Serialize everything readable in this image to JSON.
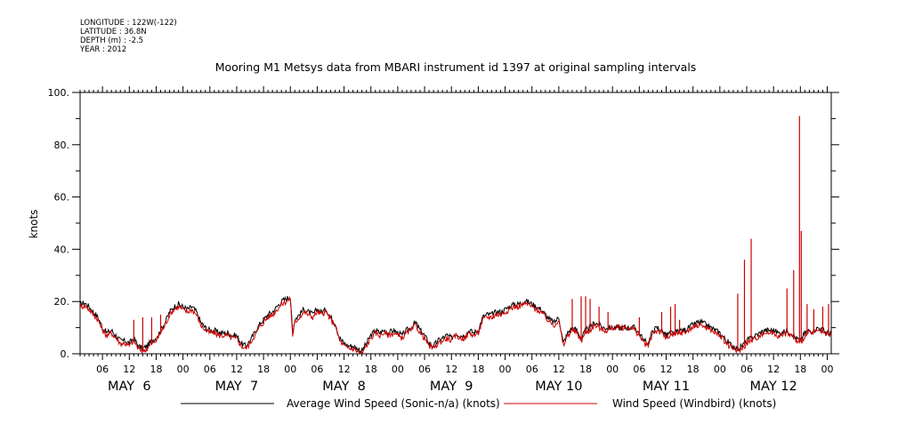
{
  "header": {
    "longitude": "LONGITUDE : 122W(-122)",
    "latitude": "LATITUDE : 36.8N",
    "depth": "DEPTH (m) : -2.5",
    "year": "YEAR : 2012"
  },
  "chart_data": {
    "type": "line",
    "title": "Mooring M1 Metsys data from MBARI instrument id 1397 at original sampling intervals",
    "ylabel": "knots",
    "xlabel": "",
    "ylim": [
      0,
      100
    ],
    "yticks": [
      {
        "v": 0,
        "label": "0."
      },
      {
        "v": 20,
        "label": "20."
      },
      {
        "v": 40,
        "label": "40."
      },
      {
        "v": 60,
        "label": "60."
      },
      {
        "v": 80,
        "label": "80."
      },
      {
        "v": 100,
        "label": "100."
      }
    ],
    "xlim_hours": [
      1.0,
      168.9
    ],
    "hour_ticks": [
      {
        "h": 6,
        "label": "06"
      },
      {
        "h": 12,
        "label": "12"
      },
      {
        "h": 18,
        "label": "18"
      },
      {
        "h": 24,
        "label": "00"
      },
      {
        "h": 30,
        "label": "06"
      },
      {
        "h": 36,
        "label": "12"
      },
      {
        "h": 42,
        "label": "18"
      },
      {
        "h": 48,
        "label": "00"
      },
      {
        "h": 54,
        "label": "06"
      },
      {
        "h": 60,
        "label": "12"
      },
      {
        "h": 66,
        "label": "18"
      },
      {
        "h": 72,
        "label": "00"
      },
      {
        "h": 78,
        "label": "06"
      },
      {
        "h": 84,
        "label": "12"
      },
      {
        "h": 90,
        "label": "18"
      },
      {
        "h": 96,
        "label": "00"
      },
      {
        "h": 102,
        "label": "06"
      },
      {
        "h": 108,
        "label": "12"
      },
      {
        "h": 114,
        "label": "18"
      },
      {
        "h": 120,
        "label": "00"
      },
      {
        "h": 126,
        "label": "06"
      },
      {
        "h": 132,
        "label": "12"
      },
      {
        "h": 138,
        "label": "18"
      },
      {
        "h": 144,
        "label": "00"
      },
      {
        "h": 150,
        "label": "06"
      },
      {
        "h": 156,
        "label": "12"
      },
      {
        "h": 162,
        "label": "18"
      },
      {
        "h": 168,
        "label": "00"
      }
    ],
    "day_labels": [
      {
        "h": 12,
        "label": "MAY  6"
      },
      {
        "h": 36,
        "label": "MAY  7"
      },
      {
        "h": 60,
        "label": "MAY  8"
      },
      {
        "h": 84,
        "label": "MAY  9"
      },
      {
        "h": 108,
        "label": "MAY 10"
      },
      {
        "h": 132,
        "label": "MAY 11"
      },
      {
        "h": 156,
        "label": "MAY 12"
      }
    ],
    "series": [
      {
        "name": "Average Wind Speed (Sonic-n/a) (knots)",
        "color": "#000000",
        "x": [
          1,
          2,
          3,
          4,
          5,
          6,
          7,
          8,
          9,
          10,
          11,
          12,
          13,
          14,
          15,
          16,
          17,
          18,
          19,
          20,
          21,
          22,
          23,
          24,
          25,
          26,
          27,
          28,
          29,
          30,
          31,
          32,
          33,
          34,
          35,
          36,
          37,
          38,
          39,
          40,
          41,
          42,
          43,
          44,
          45,
          46,
          47,
          48,
          48.5,
          49,
          50,
          51,
          52,
          53,
          54,
          55,
          56,
          57,
          58,
          59,
          60,
          61,
          62,
          63,
          64,
          65,
          66,
          67,
          68,
          69,
          70,
          71,
          72,
          73,
          74,
          75,
          76,
          77,
          78,
          79,
          80,
          81,
          82,
          83,
          84,
          85,
          86,
          87,
          88,
          89,
          90,
          91,
          92,
          93,
          94,
          95,
          96,
          97,
          98,
          99,
          100,
          101,
          102,
          103,
          104,
          105,
          106,
          107,
          108,
          109,
          110,
          111,
          112,
          113,
          114,
          115,
          116,
          117,
          118,
          119,
          120,
          121,
          122,
          123,
          124,
          125,
          126,
          127,
          128,
          129,
          130,
          131,
          132,
          133,
          134,
          135,
          136,
          137,
          138,
          139,
          140,
          141,
          142,
          143,
          144,
          145,
          146,
          147,
          148,
          149,
          150,
          151,
          152,
          153,
          154,
          155,
          156,
          157,
          158,
          159,
          160,
          161,
          162,
          163,
          164,
          165,
          166,
          167,
          168,
          168.9
        ],
        "y": [
          19,
          19.5,
          18,
          16,
          14,
          10,
          8,
          9,
          7,
          5,
          5,
          4,
          6,
          3,
          2,
          3,
          5,
          6,
          9,
          12,
          16,
          18,
          19,
          18,
          17,
          18,
          16,
          12,
          10,
          9,
          9,
          8,
          8,
          8,
          7,
          7,
          4,
          3,
          5,
          8,
          11,
          13,
          15,
          16,
          18,
          20,
          21,
          22,
          8,
          13,
          15,
          17,
          16,
          15,
          17,
          16,
          17,
          14,
          12,
          6,
          4,
          3,
          3,
          2,
          1,
          4,
          7,
          9,
          8,
          9,
          8,
          9,
          8,
          7,
          9,
          10,
          12,
          9,
          7,
          4,
          3,
          5,
          6,
          7,
          6,
          8,
          7,
          7,
          9,
          8,
          9,
          14,
          15,
          15,
          16,
          16,
          17,
          18,
          19,
          19,
          20,
          20,
          19,
          18,
          17,
          15,
          13,
          12,
          14,
          4,
          8,
          10,
          9,
          6,
          9,
          10,
          12,
          11,
          10,
          10,
          10,
          10,
          10,
          10,
          10,
          10,
          8,
          5,
          4,
          9,
          10,
          9,
          7,
          8,
          8,
          9,
          9,
          10,
          11,
          12,
          12,
          11,
          10,
          9,
          8,
          6,
          4,
          3,
          2,
          3,
          5,
          6,
          7,
          8,
          9,
          9,
          9,
          8,
          8,
          9,
          8,
          6,
          5,
          8,
          9,
          9,
          10,
          9,
          8,
          8
        ]
      },
      {
        "name": "Wind Speed (Windbird) (knots)",
        "color": "#cc0000",
        "x": [
          1,
          2,
          3,
          4,
          5,
          6,
          7,
          8,
          9,
          10,
          11,
          12,
          13,
          14,
          15,
          16,
          17,
          18,
          19,
          20,
          21,
          22,
          23,
          24,
          25,
          26,
          27,
          28,
          29,
          30,
          31,
          32,
          33,
          34,
          35,
          36,
          37,
          38,
          39,
          40,
          41,
          42,
          43,
          44,
          45,
          46,
          47,
          48,
          48.5,
          49,
          50,
          51,
          52,
          53,
          54,
          55,
          56,
          57,
          58,
          59,
          60,
          61,
          62,
          63,
          64,
          65,
          66,
          67,
          68,
          69,
          70,
          71,
          72,
          73,
          74,
          75,
          76,
          77,
          78,
          79,
          80,
          81,
          82,
          83,
          84,
          85,
          86,
          87,
          88,
          89,
          90,
          91,
          92,
          93,
          94,
          95,
          96,
          97,
          98,
          99,
          100,
          101,
          102,
          103,
          104,
          105,
          106,
          107,
          108,
          109,
          110,
          111,
          112,
          113,
          114,
          115,
          116,
          117,
          118,
          119,
          120,
          121,
          122,
          123,
          124,
          125,
          126,
          127,
          128,
          129,
          130,
          131,
          132,
          133,
          134,
          135,
          136,
          137,
          138,
          139,
          140,
          141,
          142,
          143,
          144,
          145,
          146,
          147,
          148,
          149,
          150,
          151,
          152,
          153,
          154,
          155,
          156,
          157,
          158,
          159,
          160,
          161,
          162,
          163,
          164,
          165,
          166,
          167,
          168,
          168.9
        ],
        "y": [
          18,
          18.5,
          17,
          15,
          13,
          9,
          7,
          8,
          6,
          4,
          4,
          3,
          5,
          2,
          1,
          2,
          4,
          5,
          8,
          11,
          15,
          17,
          18,
          17,
          16,
          17,
          15,
          11,
          9,
          8,
          8,
          7,
          7,
          7,
          6,
          6,
          3,
          2,
          4,
          7,
          10,
          12,
          14,
          15,
          17,
          19,
          20,
          21,
          7,
          12,
          14,
          16,
          15,
          14,
          16,
          15,
          16,
          13,
          11,
          5,
          3,
          2,
          2,
          1,
          0,
          3,
          6,
          8,
          7,
          8,
          7,
          8,
          7,
          6,
          8,
          9,
          11,
          8,
          6,
          3,
          2,
          4,
          5,
          6,
          5,
          7,
          6,
          6,
          8,
          7,
          8,
          13,
          14,
          14,
          15,
          15,
          16,
          17,
          18,
          18,
          19,
          19,
          18,
          17,
          16,
          14,
          12,
          11,
          13,
          3,
          7,
          9,
          8,
          5,
          8,
          9,
          11,
          10,
          9,
          9,
          10,
          10,
          10,
          10,
          10,
          9,
          7,
          4,
          3,
          8,
          9,
          8,
          6,
          7,
          7,
          8,
          8,
          9,
          10,
          11,
          11,
          10,
          9,
          8,
          7,
          5,
          3,
          2,
          1,
          2,
          4,
          5,
          6,
          7,
          8,
          8,
          8,
          7,
          7,
          8,
          7,
          5,
          4,
          7,
          8,
          8,
          9,
          8,
          7,
          7
        ]
      }
    ],
    "spikes_red": [
      {
        "x": 13,
        "y": 13
      },
      {
        "x": 15,
        "y": 14
      },
      {
        "x": 17,
        "y": 14
      },
      {
        "x": 19,
        "y": 15
      },
      {
        "x": 111,
        "y": 21
      },
      {
        "x": 113,
        "y": 22
      },
      {
        "x": 114,
        "y": 22
      },
      {
        "x": 115,
        "y": 21
      },
      {
        "x": 117,
        "y": 18
      },
      {
        "x": 119,
        "y": 16
      },
      {
        "x": 126,
        "y": 14
      },
      {
        "x": 131,
        "y": 16
      },
      {
        "x": 133,
        "y": 18
      },
      {
        "x": 134,
        "y": 19
      },
      {
        "x": 135,
        "y": 13
      },
      {
        "x": 148,
        "y": 23
      },
      {
        "x": 149.5,
        "y": 36
      },
      {
        "x": 151,
        "y": 44
      },
      {
        "x": 159,
        "y": 25
      },
      {
        "x": 160.5,
        "y": 32
      },
      {
        "x": 161.8,
        "y": 91
      },
      {
        "x": 162.2,
        "y": 47
      },
      {
        "x": 163.5,
        "y": 19
      },
      {
        "x": 165,
        "y": 17
      },
      {
        "x": 167,
        "y": 18
      },
      {
        "x": 168.3,
        "y": 19
      }
    ]
  }
}
